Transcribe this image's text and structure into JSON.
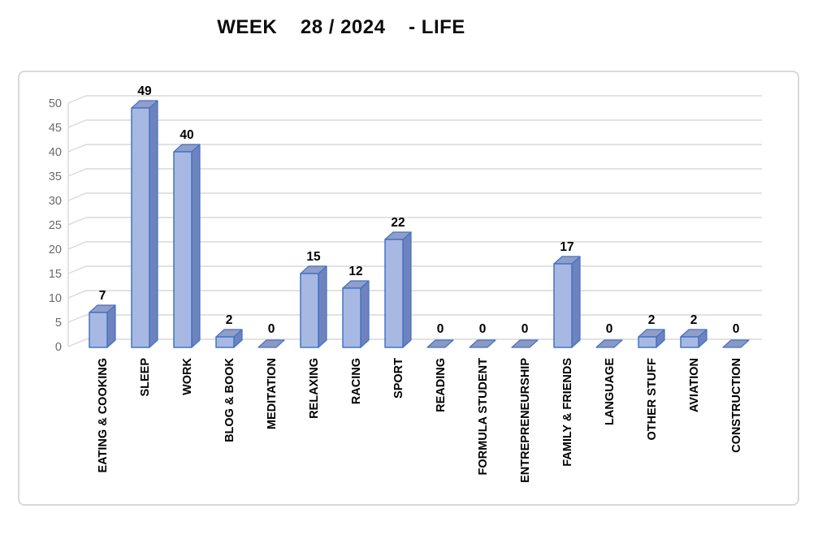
{
  "title": "WEEK    28 / 2024    - LIFE",
  "chart_data": {
    "type": "bar",
    "variant": "3d-column",
    "title": "WEEK    28 / 2024    - LIFE",
    "categories": [
      "EATING & COOKING",
      "SLEEP",
      "WORK",
      "BLOG & BOOK",
      "MEDITATION",
      "RELAXING",
      "RACING",
      "SPORT",
      "READING",
      "FORMULA STUDENT",
      "ENTREPRENEURSHIP",
      "FAMILY & FRIENDS",
      "LANGUAGE",
      "OTHER STUFF",
      "AVIATION",
      "CONSTRUCTION"
    ],
    "values": [
      7,
      49,
      40,
      2,
      0,
      15,
      12,
      22,
      0,
      0,
      0,
      17,
      0,
      2,
      2,
      0
    ],
    "y_ticks": [
      0,
      5,
      10,
      15,
      20,
      25,
      30,
      35,
      40,
      45,
      50
    ],
    "ylim": [
      0,
      50
    ],
    "xlabel": "",
    "ylabel": "",
    "grid": true,
    "legend": false,
    "show_data_labels": true,
    "colors": {
      "bar_front": "#A7B9E3",
      "bar_side": "#6E83BE",
      "bar_top": "#909EC8",
      "bar_border": "#4472C4",
      "zero_marker": "#8A99C2",
      "gridline": "#D9D9D9",
      "axis_text": "#6A6A6A",
      "label_text": "#000000"
    }
  }
}
